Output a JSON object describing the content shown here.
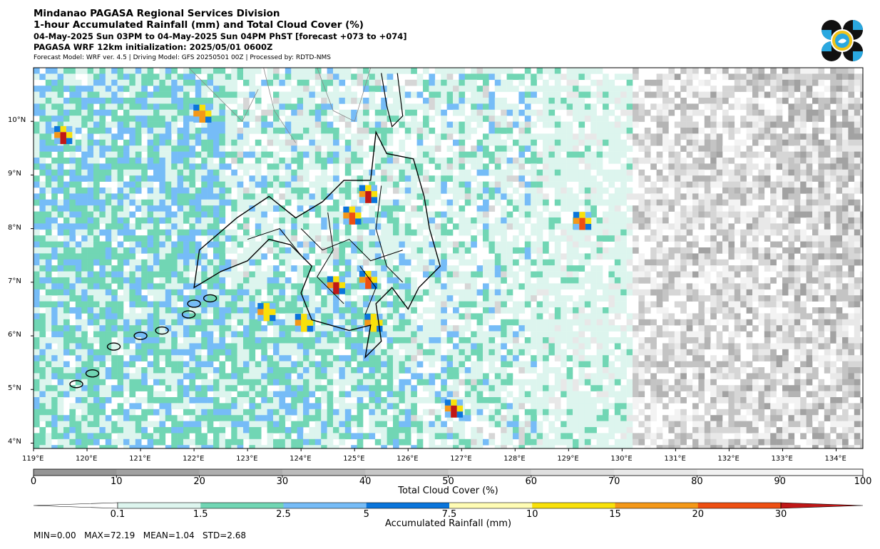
{
  "header": {
    "title": "Mindanao PAGASA Regional Services Division",
    "subtitle": "1-hour Accumulated Rainfall (mm) and Total Cloud Cover (%)",
    "valid_period": "04-May-2025 Sun 03PM to 04-May-2025 Sun 04PM PhST [forecast +073 to +074]",
    "initialization": "PAGASA WRF 12km initialization: 2025/05/01 0600Z",
    "model_info": "Forecast Model: WRF ver. 4.5 | Driving Model: GFS 20250501 00Z | Processed by: RDTD-NMS"
  },
  "map": {
    "lon_range": [
      119,
      134.5
    ],
    "lat_range": [
      3.9,
      11.0
    ],
    "lon_ticks": [
      "119°E",
      "120°E",
      "121°E",
      "122°E",
      "123°E",
      "124°E",
      "125°E",
      "126°E",
      "127°E",
      "128°E",
      "129°E",
      "130°E",
      "131°E",
      "132°E",
      "133°E",
      "134°E"
    ],
    "lat_ticks": [
      "4°N",
      "5°N",
      "6°N",
      "7°N",
      "8°N",
      "9°N",
      "10°N"
    ],
    "rain_hotspots": [
      {
        "lon": 124.6,
        "lat": 7.0,
        "mm": 30
      },
      {
        "lon": 125.2,
        "lat": 8.7,
        "mm": 30
      },
      {
        "lon": 124.9,
        "lat": 8.3,
        "mm": 20
      },
      {
        "lon": 119.5,
        "lat": 9.8,
        "mm": 30
      },
      {
        "lon": 122.1,
        "lat": 10.2,
        "mm": 15
      },
      {
        "lon": 126.8,
        "lat": 4.7,
        "mm": 30
      },
      {
        "lon": 129.2,
        "lat": 8.2,
        "mm": 20
      },
      {
        "lon": 125.3,
        "lat": 6.3,
        "mm": 10
      },
      {
        "lon": 124.0,
        "lat": 6.3,
        "mm": 10
      },
      {
        "lon": 125.2,
        "lat": 7.1,
        "mm": 20
      },
      {
        "lon": 123.3,
        "lat": 6.5,
        "mm": 10
      }
    ]
  },
  "cloud_colorbar": {
    "label": "Total Cloud Cover (%)",
    "ticks": [
      "0",
      "10",
      "20",
      "30",
      "40",
      "50",
      "60",
      "70",
      "80",
      "90",
      "100"
    ],
    "colors": [
      "#959595",
      "#a1a1a1",
      "#aeaeae",
      "#bbbbbb",
      "#c7c7c7",
      "#d3d3d3",
      "#dfdfdf",
      "#e8e8e8",
      "#f1f1f1",
      "#fbfbfb"
    ]
  },
  "rain_colorbar": {
    "label": "Accumulated Rainfall (mm)",
    "ticks": [
      "0.1",
      "1.5",
      "2.5",
      "5",
      "7.5",
      "10",
      "15",
      "20",
      "30"
    ],
    "colors": [
      "#ddf5ee",
      "#71d6b4",
      "#76bcf7",
      "#0a75db",
      "#fffcb4",
      "#f9e10a",
      "#f49818",
      "#ee4f12",
      "#c01717"
    ]
  },
  "stats": "MIN=0.00   MAX=72.19   MEAN=1.04   STD=2.68",
  "colors": {
    "land_outline": "#000000",
    "frame": "#000000"
  }
}
